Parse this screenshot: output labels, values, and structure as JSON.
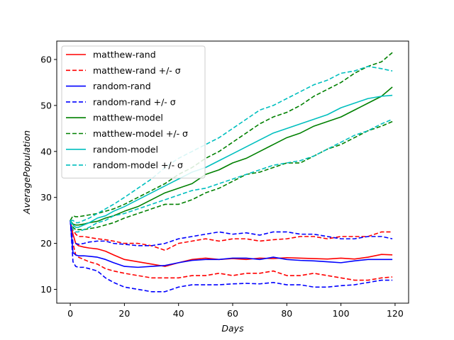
{
  "chart_data": {
    "type": "line",
    "title": "",
    "xlabel": "Days",
    "ylabel": "AveragePopulation",
    "xlim": [
      -5,
      125
    ],
    "ylim": [
      7,
      64
    ],
    "xticks": [
      0,
      20,
      40,
      60,
      80,
      100,
      120
    ],
    "yticks": [
      10,
      20,
      30,
      40,
      50,
      60
    ],
    "grid": false,
    "legend_position": "upper-left",
    "x": [
      0,
      1,
      2,
      3,
      5,
      7,
      10,
      13,
      16,
      20,
      25,
      30,
      35,
      40,
      45,
      50,
      55,
      60,
      65,
      70,
      75,
      80,
      85,
      90,
      95,
      100,
      105,
      110,
      115,
      119
    ],
    "series": [
      {
        "name": "matthew-rand",
        "color": "#ff0000",
        "dash": "solid",
        "values": [
          25,
          22,
          20,
          19.5,
          19.2,
          19,
          18.8,
          18.3,
          17.5,
          16.5,
          16,
          15.5,
          15,
          15.8,
          16.5,
          16.8,
          16.5,
          16.7,
          16.5,
          16.8,
          16.7,
          16.9,
          16.8,
          16.7,
          16.6,
          16.8,
          16.6,
          17,
          17.6,
          17.5
        ]
      },
      {
        "name": "matthew-rand +/- σ",
        "color": "#ff0000",
        "dash": "dashed",
        "values": [
          25,
          23,
          22,
          21.5,
          21.5,
          21.3,
          21,
          20.8,
          20.5,
          20,
          20,
          19.5,
          18.5,
          20,
          20.5,
          21,
          20.5,
          21,
          21,
          20.5,
          20.8,
          21,
          21.5,
          21.5,
          21,
          21.5,
          21.5,
          21.5,
          22.5,
          22.5
        ]
      },
      {
        "name": "matthew-rand +/- σ (lower)",
        "color": "#ff0000",
        "dash": "dashed",
        "values": [
          25,
          20,
          17.5,
          17,
          16.5,
          16,
          15.5,
          14.5,
          14,
          13.5,
          13,
          12.5,
          12.5,
          12.5,
          13,
          13,
          13.5,
          13,
          13.5,
          13.5,
          14,
          13,
          13,
          13.5,
          13,
          12.5,
          12,
          12,
          12.5,
          12.7
        ]
      },
      {
        "name": "random-rand",
        "color": "#0000ff",
        "dash": "solid",
        "values": [
          25,
          18,
          17.5,
          17.3,
          17.3,
          17.2,
          17,
          16.5,
          15.8,
          15,
          14.8,
          15,
          15.2,
          15.8,
          16.3,
          16.5,
          16.5,
          16.8,
          16.8,
          16.5,
          17,
          16.5,
          16.3,
          16.2,
          16,
          15.8,
          16.2,
          16.5,
          16.5,
          16.5
        ]
      },
      {
        "name": "random-rand +/- σ",
        "color": "#0000ff",
        "dash": "dashed",
        "values": [
          25,
          20,
          20,
          19.8,
          20,
          20.3,
          20.5,
          20.5,
          20,
          19.8,
          19.5,
          19.5,
          20,
          21,
          21.5,
          22,
          22.5,
          22,
          22.3,
          21.8,
          22.5,
          22.5,
          22,
          22,
          21.5,
          21,
          21,
          21.5,
          21.5,
          21
        ]
      },
      {
        "name": "random-rand +/- σ (lower)",
        "color": "#0000ff",
        "dash": "dashed",
        "values": [
          25,
          16,
          15,
          14.8,
          14.8,
          14.5,
          14,
          12.5,
          11.5,
          10.5,
          10,
          9.5,
          9.5,
          10.5,
          11,
          11,
          11,
          11.2,
          11.3,
          11.2,
          11.5,
          11,
          11,
          10.5,
          10.5,
          10.8,
          11,
          11.5,
          12,
          12
        ]
      },
      {
        "name": "matthew-model",
        "color": "#008000",
        "dash": "solid",
        "values": [
          25,
          24.2,
          24,
          24,
          24.2,
          24.5,
          24.8,
          25.5,
          26,
          27,
          28,
          29.5,
          31,
          32,
          33,
          35,
          36,
          37.5,
          38.5,
          40,
          41.5,
          43,
          44,
          45.5,
          46.5,
          47.5,
          49,
          50.5,
          52,
          54
        ]
      },
      {
        "name": "matthew-model +/- σ",
        "color": "#008000",
        "dash": "dashed",
        "values": [
          25,
          26,
          25.8,
          25.8,
          26,
          26.2,
          26.5,
          27,
          27.5,
          28.5,
          30,
          31.5,
          33,
          35,
          36.5,
          38.5,
          40,
          42,
          44,
          46,
          47.5,
          48.5,
          50,
          52,
          53.5,
          55,
          57,
          58.5,
          59.5,
          61.5
        ]
      },
      {
        "name": "matthew-model +/- σ (lower)",
        "color": "#008000",
        "dash": "dashed",
        "values": [
          25,
          23.5,
          23,
          23,
          23,
          23.2,
          23.5,
          24,
          24.5,
          25.5,
          26.5,
          27.5,
          28.5,
          28.5,
          29.5,
          31,
          32,
          33.5,
          35,
          35.5,
          36.5,
          37.5,
          37.5,
          39,
          40.5,
          41.5,
          43,
          44.5,
          45.5,
          46.5
        ]
      },
      {
        "name": "random-model",
        "color": "#00bfbf",
        "dash": "solid",
        "values": [
          25,
          24,
          23.5,
          23.5,
          24,
          24.5,
          25.5,
          26,
          27,
          28,
          29.5,
          31,
          32.5,
          34,
          35.5,
          36.5,
          38,
          39.5,
          41,
          42.5,
          44,
          45,
          46,
          47,
          48,
          49.5,
          50.5,
          51.5,
          52,
          52.2
        ]
      },
      {
        "name": "random-model +/- σ",
        "color": "#00bfbf",
        "dash": "dashed",
        "values": [
          25,
          25,
          24.5,
          24.5,
          25,
          25.5,
          26.5,
          27.5,
          28.5,
          30,
          32,
          34,
          36.5,
          38.5,
          40,
          41.5,
          43,
          45,
          47,
          49,
          50,
          51.5,
          53,
          54.5,
          55.5,
          57,
          57.5,
          58.5,
          58,
          57.5
        ]
      },
      {
        "name": "random-model +/- σ (lower)",
        "color": "#00bfbf",
        "dash": "dashed",
        "values": [
          25,
          23,
          22.5,
          22.5,
          23,
          23.5,
          24.5,
          25,
          26,
          26.5,
          27.5,
          28.5,
          29.5,
          30.5,
          31.5,
          32,
          33,
          34,
          35,
          36,
          37,
          37.5,
          38,
          39,
          40.5,
          42,
          43.5,
          44.5,
          46,
          47
        ]
      }
    ],
    "legend": [
      {
        "label": "matthew-rand",
        "color": "#ff0000",
        "dash": "solid"
      },
      {
        "label": "matthew-rand +/- σ",
        "color": "#ff0000",
        "dash": "dashed"
      },
      {
        "label": "random-rand",
        "color": "#0000ff",
        "dash": "solid"
      },
      {
        "label": "random-rand +/- σ",
        "color": "#0000ff",
        "dash": "dashed"
      },
      {
        "label": "matthew-model",
        "color": "#008000",
        "dash": "solid"
      },
      {
        "label": "matthew-model +/- σ",
        "color": "#008000",
        "dash": "dashed"
      },
      {
        "label": "random-model",
        "color": "#00bfbf",
        "dash": "solid"
      },
      {
        "label": "random-model +/- σ",
        "color": "#00bfbf",
        "dash": "dashed"
      }
    ]
  }
}
